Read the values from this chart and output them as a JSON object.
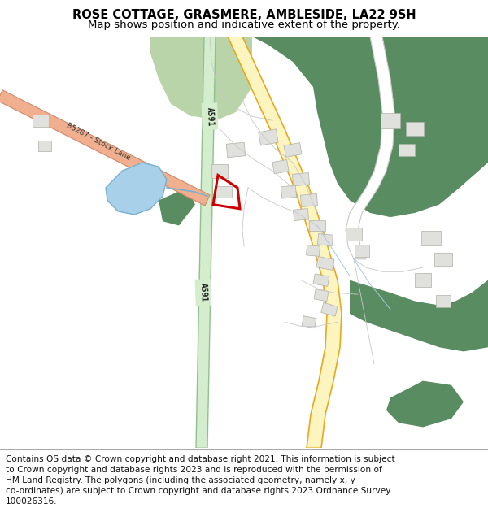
{
  "title": "ROSE COTTAGE, GRASMERE, AMBLESIDE, LA22 9SH",
  "subtitle": "Map shows position and indicative extent of the property.",
  "footer_lines": [
    "Contains OS data © Crown copyright and database right 2021. This information is subject",
    "to Crown copyright and database rights 2023 and is reproduced with the permission of",
    "HM Land Registry. The polygons (including the associated geometry, namely x, y",
    "co-ordinates) are subject to Crown copyright and database rights 2023 Ordnance Survey",
    "100026316."
  ],
  "bg_color": "#ffffff",
  "map_bg": "#f8f8f5",
  "green_dark": "#5a8c62",
  "green_light": "#b8d4a8",
  "road_a591_fill": "#d4edcc",
  "road_a591_border": "#90c090",
  "road_yellow_fill": "#fdf5c0",
  "road_yellow_border": "#e8a820",
  "road_salmon_fill": "#f0b090",
  "road_salmon_border": "#d08868",
  "water_fill": "#a8d0e8",
  "water_line": "#78b0d0",
  "building_fill": "#e0e0dc",
  "building_border": "#b0b0a8",
  "road_white_fill": "#ffffff",
  "road_white_border": "#c8c8c8",
  "plot_color": "#cc0000",
  "text_dark": "#1a1a1a"
}
